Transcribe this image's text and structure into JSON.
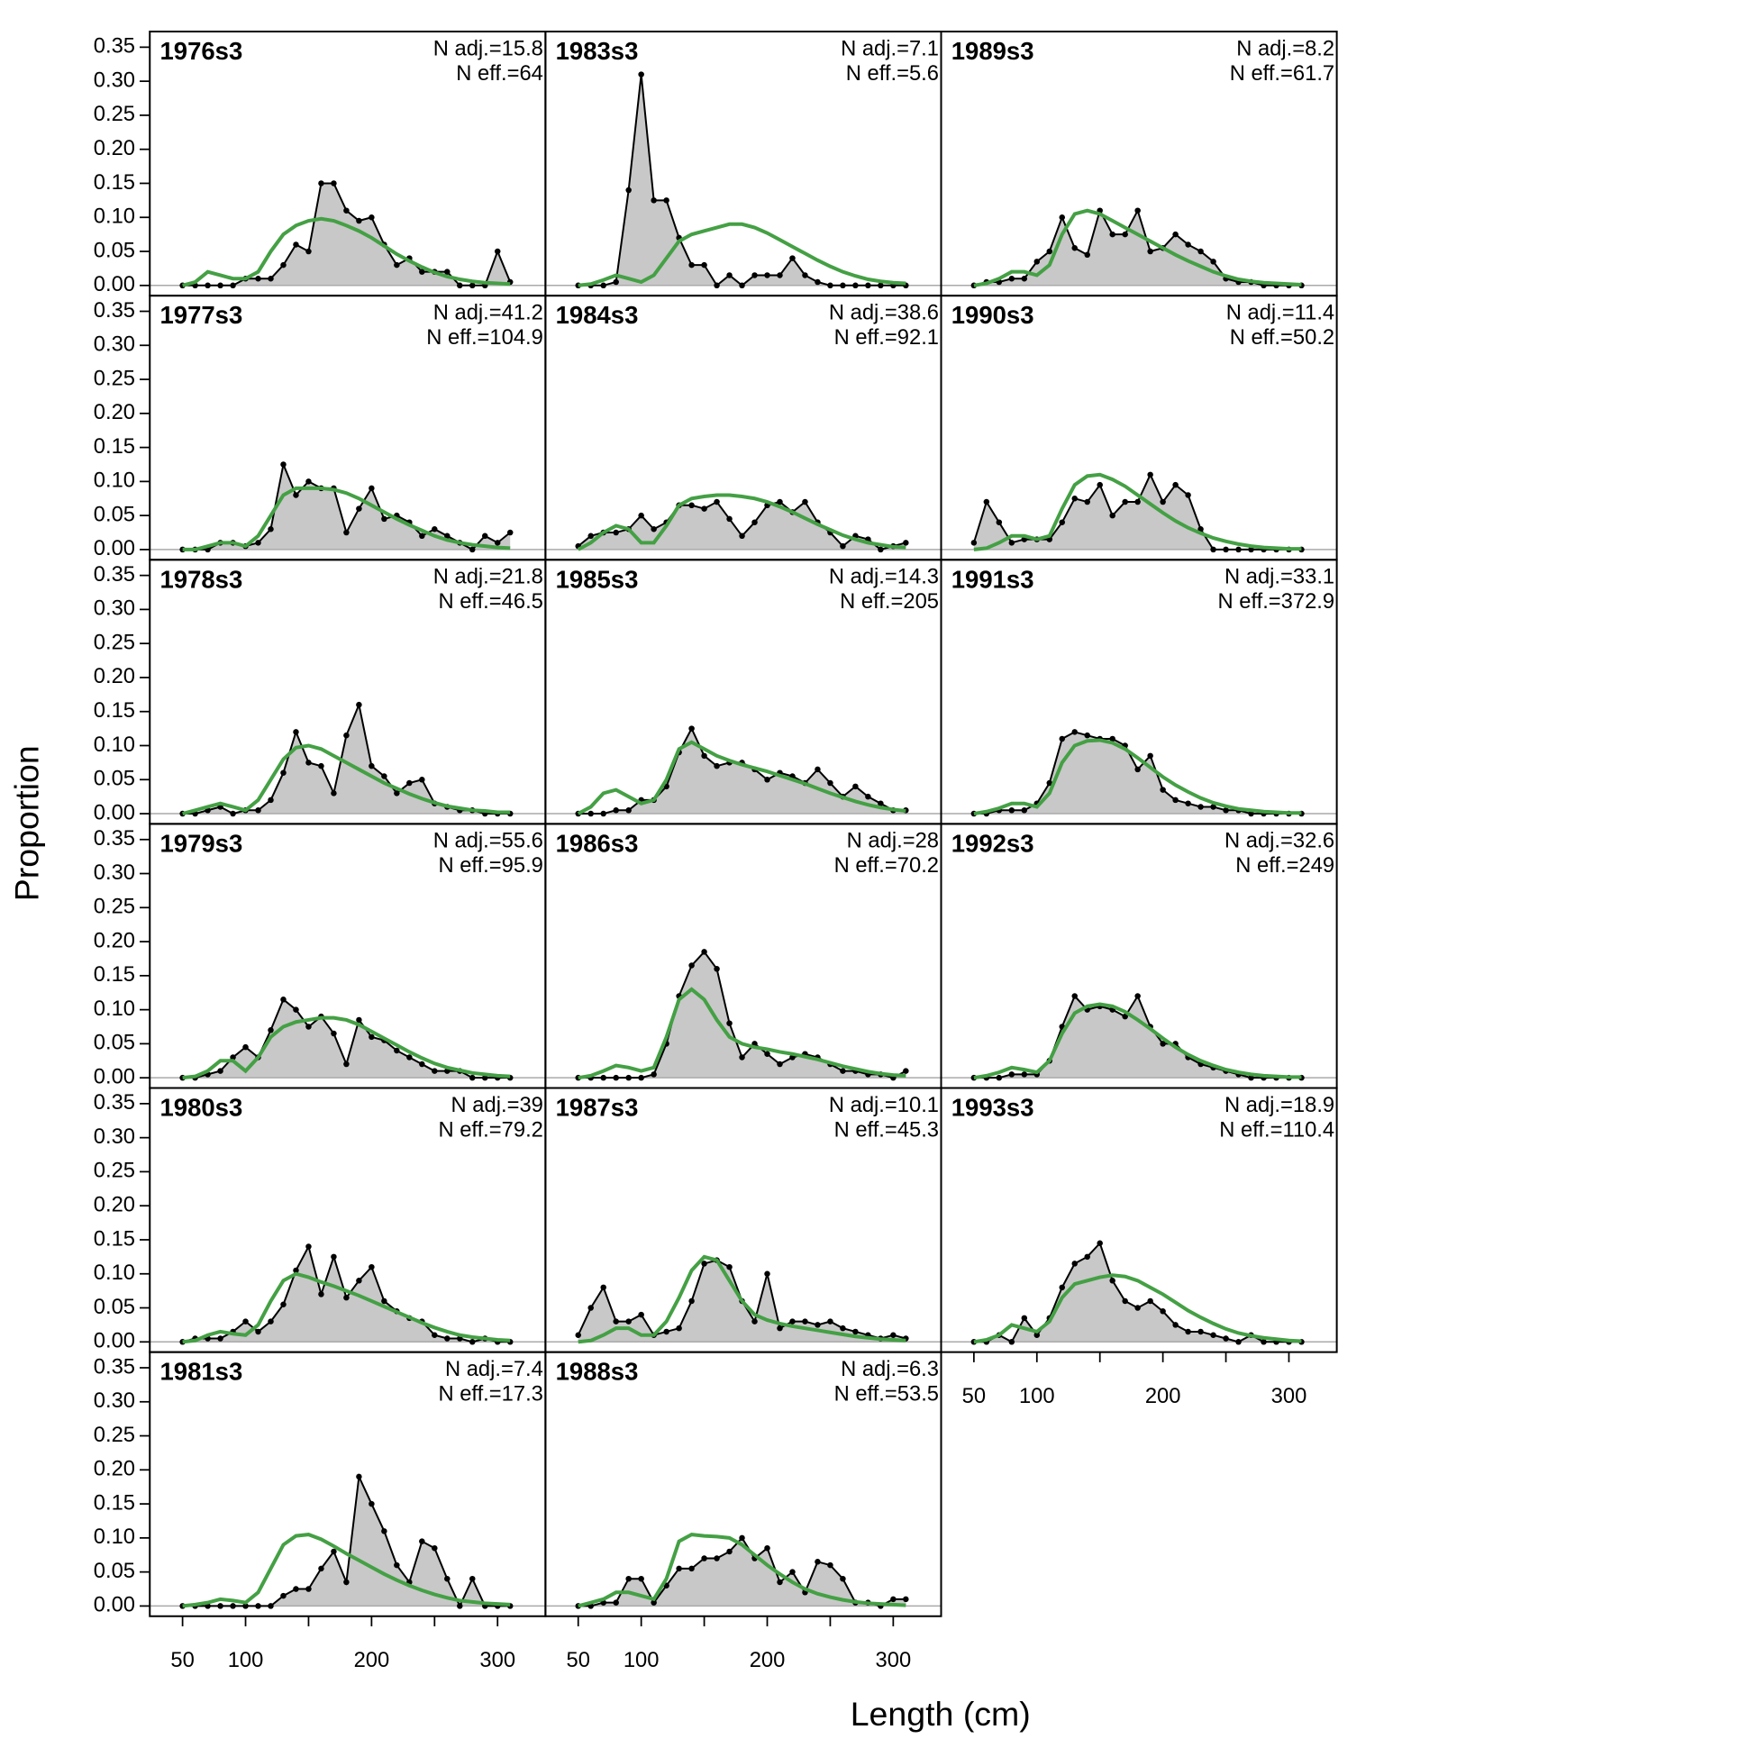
{
  "chart_data": {
    "type": "composition",
    "xlabel": "Length (cm)",
    "ylabel": "Proportion",
    "xlim": [
      24,
      338
    ],
    "ylim": [
      -0.015,
      0.373
    ],
    "xticks": [
      50,
      100,
      200,
      300
    ],
    "xminor": [
      150,
      250
    ],
    "yticks": [
      {
        "value": 0,
        "label": "0.00"
      },
      {
        "value": 0.05,
        "label": "0.05"
      },
      {
        "value": 0.1,
        "label": "0.10"
      },
      {
        "value": 0.15,
        "label": "0.15"
      },
      {
        "value": 0.2,
        "label": "0.20"
      },
      {
        "value": 0.25,
        "label": "0.25"
      },
      {
        "value": 0.3,
        "label": "0.30"
      },
      {
        "value": 0.35,
        "label": "0.35"
      }
    ],
    "observed_color": "#000000",
    "fill_color": "#c8c8c8",
    "expected_color": "#44a044",
    "x": [
      50,
      60,
      70,
      80,
      90,
      100,
      110,
      120,
      130,
      140,
      150,
      160,
      170,
      180,
      190,
      200,
      210,
      220,
      230,
      240,
      250,
      260,
      270,
      280,
      290,
      300,
      310
    ],
    "panels": [
      {
        "title": "1976s3",
        "n_adj": "N adj.=15.8",
        "n_eff": "N eff.=64",
        "observed": [
          0,
          0,
          0,
          0,
          0,
          0.01,
          0.01,
          0.01,
          0.03,
          0.06,
          0.05,
          0.15,
          0.15,
          0.11,
          0.095,
          0.1,
          0.06,
          0.03,
          0.04,
          0.02,
          0.02,
          0.02,
          0,
          0,
          0,
          0.05,
          0.005
        ],
        "expected": [
          0,
          0.005,
          0.02,
          0.015,
          0.01,
          0.01,
          0.02,
          0.05,
          0.075,
          0.088,
          0.095,
          0.098,
          0.095,
          0.088,
          0.08,
          0.07,
          0.058,
          0.046,
          0.036,
          0.027,
          0.019,
          0.013,
          0.009,
          0.006,
          0.004,
          0.003,
          0.002
        ]
      },
      {
        "title": "1977s3",
        "n_adj": "N adj.=41.2",
        "n_eff": "N eff.=104.9",
        "observed": [
          0,
          0,
          0,
          0.01,
          0.01,
          0.005,
          0.01,
          0.03,
          0.125,
          0.08,
          0.1,
          0.09,
          0.09,
          0.025,
          0.06,
          0.09,
          0.045,
          0.05,
          0.04,
          0.02,
          0.03,
          0.02,
          0.01,
          0,
          0.02,
          0.01,
          0.025
        ],
        "expected": [
          0,
          0,
          0.005,
          0.01,
          0.01,
          0.005,
          0.02,
          0.05,
          0.08,
          0.09,
          0.09,
          0.09,
          0.088,
          0.083,
          0.075,
          0.065,
          0.055,
          0.045,
          0.036,
          0.028,
          0.02,
          0.014,
          0.01,
          0.007,
          0.005,
          0.003,
          0.002
        ]
      },
      {
        "title": "1978s3",
        "n_adj": "N adj.=21.8",
        "n_eff": "N eff.=46.5",
        "observed": [
          0,
          0,
          0.005,
          0.01,
          0,
          0.005,
          0.005,
          0.02,
          0.06,
          0.12,
          0.075,
          0.07,
          0.03,
          0.115,
          0.16,
          0.07,
          0.055,
          0.03,
          0.045,
          0.05,
          0.015,
          0.01,
          0.005,
          0.005,
          0,
          0,
          0
        ],
        "expected": [
          0,
          0.005,
          0.01,
          0.015,
          0.01,
          0.005,
          0.02,
          0.05,
          0.08,
          0.097,
          0.1,
          0.095,
          0.085,
          0.075,
          0.065,
          0.055,
          0.045,
          0.037,
          0.029,
          0.022,
          0.016,
          0.011,
          0.008,
          0.005,
          0.004,
          0.002,
          0.002
        ]
      },
      {
        "title": "1979s3",
        "n_adj": "N adj.=55.6",
        "n_eff": "N eff.=95.9",
        "observed": [
          0,
          0,
          0.005,
          0.01,
          0.03,
          0.045,
          0.03,
          0.07,
          0.115,
          0.1,
          0.075,
          0.09,
          0.065,
          0.02,
          0.085,
          0.06,
          0.055,
          0.04,
          0.03,
          0.02,
          0.01,
          0.01,
          0.01,
          0,
          0,
          0,
          0
        ],
        "expected": [
          0,
          0.002,
          0.01,
          0.025,
          0.025,
          0.01,
          0.03,
          0.06,
          0.075,
          0.082,
          0.085,
          0.088,
          0.088,
          0.085,
          0.078,
          0.068,
          0.058,
          0.048,
          0.038,
          0.029,
          0.021,
          0.015,
          0.011,
          0.007,
          0.005,
          0.003,
          0.002
        ]
      },
      {
        "title": "1980s3",
        "n_adj": "N adj.=39",
        "n_eff": "N eff.=79.2",
        "observed": [
          0,
          0.005,
          0.005,
          0.005,
          0.015,
          0.03,
          0.015,
          0.03,
          0.055,
          0.105,
          0.14,
          0.07,
          0.125,
          0.065,
          0.09,
          0.11,
          0.06,
          0.045,
          0.035,
          0.03,
          0.01,
          0.005,
          0.005,
          0,
          0.005,
          0,
          0
        ],
        "expected": [
          0,
          0.002,
          0.01,
          0.015,
          0.012,
          0.01,
          0.025,
          0.06,
          0.09,
          0.1,
          0.095,
          0.088,
          0.082,
          0.075,
          0.068,
          0.06,
          0.052,
          0.044,
          0.036,
          0.028,
          0.021,
          0.015,
          0.01,
          0.007,
          0.005,
          0.003,
          0.002
        ]
      },
      {
        "title": "1981s3",
        "n_adj": "N adj.=7.4",
        "n_eff": "N eff.=17.3",
        "observed": [
          0,
          0,
          0,
          0,
          0,
          0,
          0,
          0,
          0.015,
          0.025,
          0.025,
          0.055,
          0.08,
          0.035,
          0.19,
          0.15,
          0.11,
          0.06,
          0.035,
          0.095,
          0.085,
          0.04,
          0,
          0.04,
          0,
          0,
          0
        ],
        "expected": [
          0,
          0.002,
          0.005,
          0.01,
          0.008,
          0.005,
          0.02,
          0.055,
          0.09,
          0.103,
          0.105,
          0.098,
          0.088,
          0.077,
          0.067,
          0.057,
          0.047,
          0.038,
          0.03,
          0.023,
          0.017,
          0.012,
          0.008,
          0.006,
          0.004,
          0.003,
          0.002
        ]
      },
      {
        "title": "1983s3",
        "n_adj": "N adj.=7.1",
        "n_eff": "N eff.=5.6",
        "observed": [
          0,
          0,
          0,
          0.005,
          0.14,
          0.31,
          0.125,
          0.125,
          0.07,
          0.03,
          0.03,
          0,
          0.015,
          0,
          0.015,
          0.015,
          0.015,
          0.04,
          0.015,
          0.005,
          0,
          0,
          0,
          0,
          0,
          0,
          0
        ],
        "expected": [
          0,
          0.002,
          0.008,
          0.015,
          0.01,
          0.005,
          0.015,
          0.04,
          0.065,
          0.075,
          0.08,
          0.085,
          0.09,
          0.09,
          0.085,
          0.077,
          0.067,
          0.057,
          0.047,
          0.037,
          0.028,
          0.02,
          0.014,
          0.009,
          0.006,
          0.004,
          0.003
        ]
      },
      {
        "title": "1984s3",
        "n_adj": "N adj.=38.6",
        "n_eff": "N eff.=92.1",
        "observed": [
          0.005,
          0.02,
          0.025,
          0.025,
          0.03,
          0.05,
          0.03,
          0.04,
          0.065,
          0.065,
          0.06,
          0.07,
          0.045,
          0.02,
          0.04,
          0.065,
          0.07,
          0.055,
          0.07,
          0.04,
          0.025,
          0.005,
          0.02,
          0.015,
          0,
          0.005,
          0.01
        ],
        "expected": [
          0,
          0.01,
          0.025,
          0.035,
          0.03,
          0.01,
          0.01,
          0.035,
          0.065,
          0.075,
          0.078,
          0.08,
          0.08,
          0.078,
          0.075,
          0.07,
          0.063,
          0.055,
          0.046,
          0.037,
          0.029,
          0.021,
          0.015,
          0.01,
          0.007,
          0.004,
          0.003
        ]
      },
      {
        "title": "1985s3",
        "n_adj": "N adj.=14.3",
        "n_eff": "N eff.=205",
        "observed": [
          0,
          0,
          0,
          0.005,
          0.005,
          0.02,
          0.02,
          0.04,
          0.09,
          0.125,
          0.085,
          0.07,
          0.075,
          0.075,
          0.065,
          0.05,
          0.06,
          0.055,
          0.045,
          0.065,
          0.045,
          0.025,
          0.04,
          0.025,
          0.015,
          0.005,
          0.005
        ],
        "expected": [
          0,
          0.01,
          0.03,
          0.035,
          0.025,
          0.015,
          0.02,
          0.05,
          0.095,
          0.105,
          0.095,
          0.085,
          0.078,
          0.072,
          0.067,
          0.062,
          0.056,
          0.05,
          0.044,
          0.037,
          0.03,
          0.024,
          0.018,
          0.013,
          0.009,
          0.006,
          0.004
        ]
      },
      {
        "title": "1986s3",
        "n_adj": "N adj.=28",
        "n_eff": "N eff.=70.2",
        "observed": [
          0,
          0,
          0,
          0,
          0,
          0,
          0.005,
          0.05,
          0.12,
          0.165,
          0.185,
          0.16,
          0.08,
          0.03,
          0.05,
          0.035,
          0.02,
          0.03,
          0.035,
          0.03,
          0.02,
          0.01,
          0.01,
          0.005,
          0.005,
          0,
          0.01
        ],
        "expected": [
          0,
          0.003,
          0.01,
          0.018,
          0.015,
          0.01,
          0.015,
          0.06,
          0.115,
          0.13,
          0.115,
          0.085,
          0.06,
          0.05,
          0.045,
          0.042,
          0.038,
          0.035,
          0.031,
          0.027,
          0.022,
          0.017,
          0.013,
          0.009,
          0.006,
          0.004,
          0.003
        ]
      },
      {
        "title": "1987s3",
        "n_adj": "N adj.=10.1",
        "n_eff": "N eff.=45.3",
        "observed": [
          0.01,
          0.05,
          0.08,
          0.03,
          0.03,
          0.04,
          0.01,
          0.015,
          0.02,
          0.06,
          0.115,
          0.12,
          0.11,
          0.06,
          0.03,
          0.1,
          0.02,
          0.03,
          0.03,
          0.025,
          0.03,
          0.02,
          0.015,
          0.01,
          0.005,
          0.01,
          0.005
        ],
        "expected": [
          0,
          0.002,
          0.01,
          0.02,
          0.02,
          0.01,
          0.01,
          0.03,
          0.065,
          0.105,
          0.125,
          0.12,
          0.09,
          0.06,
          0.04,
          0.032,
          0.027,
          0.023,
          0.02,
          0.017,
          0.014,
          0.011,
          0.008,
          0.006,
          0.004,
          0.003,
          0.002
        ]
      },
      {
        "title": "1988s3",
        "n_adj": "N adj.=6.3",
        "n_eff": "N eff.=53.5",
        "observed": [
          0,
          0,
          0.005,
          0.005,
          0.04,
          0.04,
          0.005,
          0.03,
          0.055,
          0.055,
          0.07,
          0.07,
          0.08,
          0.1,
          0.07,
          0.085,
          0.035,
          0.05,
          0.02,
          0.065,
          0.06,
          0.04,
          0.005,
          0.005,
          0,
          0.01,
          0.01
        ],
        "expected": [
          0,
          0.005,
          0.01,
          0.02,
          0.02,
          0.015,
          0.01,
          0.04,
          0.095,
          0.105,
          0.103,
          0.102,
          0.1,
          0.09,
          0.075,
          0.06,
          0.047,
          0.035,
          0.025,
          0.018,
          0.013,
          0.009,
          0.006,
          0.004,
          0.003,
          0.002,
          0.001
        ]
      },
      {
        "title": "1989s3",
        "n_adj": "N adj.=8.2",
        "n_eff": "N eff.=61.7",
        "observed": [
          0,
          0.005,
          0.005,
          0.01,
          0.01,
          0.035,
          0.05,
          0.1,
          0.055,
          0.045,
          0.11,
          0.075,
          0.075,
          0.11,
          0.05,
          0.055,
          0.075,
          0.06,
          0.05,
          0.035,
          0.01,
          0.005,
          0.005,
          0,
          0,
          0,
          0
        ],
        "expected": [
          0,
          0.003,
          0.01,
          0.02,
          0.02,
          0.015,
          0.03,
          0.075,
          0.105,
          0.11,
          0.105,
          0.095,
          0.085,
          0.075,
          0.065,
          0.055,
          0.045,
          0.036,
          0.028,
          0.02,
          0.014,
          0.009,
          0.006,
          0.004,
          0.003,
          0.002,
          0.001
        ]
      },
      {
        "title": "1990s3",
        "n_adj": "N adj.=11.4",
        "n_eff": "N eff.=50.2",
        "observed": [
          0.01,
          0.07,
          0.04,
          0.01,
          0.015,
          0.015,
          0.015,
          0.04,
          0.075,
          0.07,
          0.095,
          0.05,
          0.07,
          0.07,
          0.11,
          0.07,
          0.095,
          0.08,
          0.03,
          0,
          0,
          0,
          0,
          0,
          0,
          0,
          0
        ],
        "expected": [
          0,
          0.002,
          0.01,
          0.02,
          0.02,
          0.015,
          0.02,
          0.06,
          0.095,
          0.108,
          0.11,
          0.103,
          0.093,
          0.08,
          0.067,
          0.054,
          0.042,
          0.032,
          0.024,
          0.017,
          0.012,
          0.008,
          0.005,
          0.003,
          0.002,
          0.001,
          0.001
        ]
      },
      {
        "title": "1991s3",
        "n_adj": "N adj.=33.1",
        "n_eff": "N eff.=372.9",
        "observed": [
          0,
          0,
          0.005,
          0.005,
          0.005,
          0.015,
          0.045,
          0.11,
          0.12,
          0.115,
          0.11,
          0.11,
          0.1,
          0.065,
          0.085,
          0.035,
          0.02,
          0.015,
          0.01,
          0.01,
          0.005,
          0.005,
          0,
          0,
          0,
          0,
          0
        ],
        "expected": [
          0,
          0.003,
          0.008,
          0.015,
          0.015,
          0.01,
          0.03,
          0.075,
          0.1,
          0.107,
          0.108,
          0.104,
          0.095,
          0.082,
          0.068,
          0.054,
          0.042,
          0.032,
          0.023,
          0.016,
          0.011,
          0.007,
          0.005,
          0.003,
          0.002,
          0.001,
          0.001
        ]
      },
      {
        "title": "1992s3",
        "n_adj": "N adj.=32.6",
        "n_eff": "N eff.=249",
        "observed": [
          0,
          0,
          0,
          0.005,
          0.005,
          0.005,
          0.025,
          0.075,
          0.12,
          0.1,
          0.105,
          0.1,
          0.09,
          0.12,
          0.075,
          0.05,
          0.05,
          0.03,
          0.02,
          0.015,
          0.01,
          0.005,
          0,
          0,
          0,
          0,
          0
        ],
        "expected": [
          0,
          0.003,
          0.008,
          0.015,
          0.012,
          0.008,
          0.025,
          0.065,
          0.095,
          0.105,
          0.108,
          0.105,
          0.097,
          0.085,
          0.072,
          0.058,
          0.045,
          0.034,
          0.025,
          0.018,
          0.012,
          0.008,
          0.005,
          0.003,
          0.002,
          0.001,
          0.001
        ]
      },
      {
        "title": "1993s3",
        "n_adj": "N adj.=18.9",
        "n_eff": "N eff.=110.4",
        "observed": [
          0,
          0,
          0.01,
          0,
          0.035,
          0.01,
          0.035,
          0.08,
          0.115,
          0.125,
          0.145,
          0.09,
          0.06,
          0.05,
          0.06,
          0.045,
          0.025,
          0.015,
          0.015,
          0.01,
          0.005,
          0,
          0.01,
          0,
          0,
          0,
          0
        ],
        "expected": [
          0,
          0.003,
          0.01,
          0.025,
          0.02,
          0.015,
          0.03,
          0.065,
          0.085,
          0.09,
          0.095,
          0.098,
          0.096,
          0.09,
          0.08,
          0.07,
          0.058,
          0.046,
          0.036,
          0.027,
          0.019,
          0.013,
          0.009,
          0.006,
          0.004,
          0.002,
          0.001
        ]
      }
    ]
  }
}
